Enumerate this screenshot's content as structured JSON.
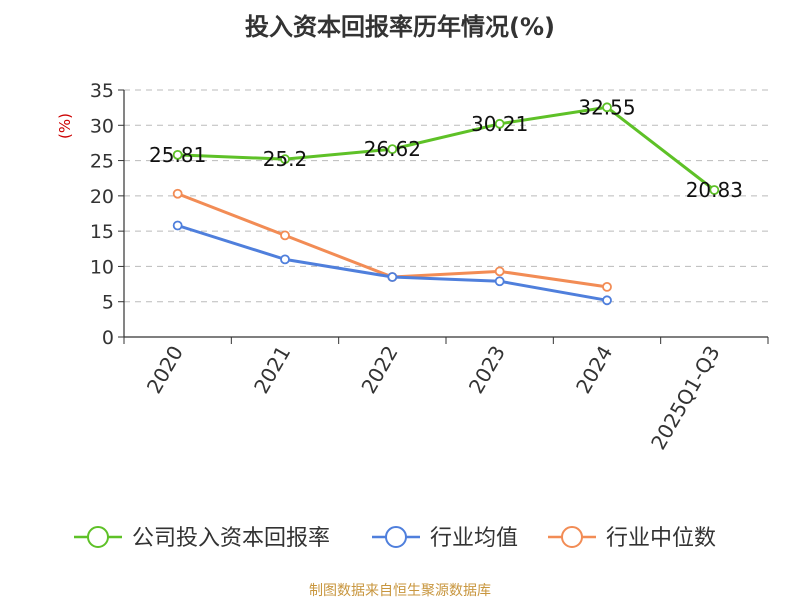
{
  "chart_data": {
    "type": "line",
    "title": "投入资本回报率历年情况(%)",
    "ylabel": "(%)",
    "categories": [
      "2020",
      "2021",
      "2022",
      "2023",
      "2024",
      "2025Q1-Q3"
    ],
    "ylim": [
      0,
      35
    ],
    "yticks": [
      0,
      5,
      10,
      15,
      20,
      25,
      30,
      35
    ],
    "grid": true,
    "legend_position": "bottom",
    "series": [
      {
        "name": "公司投入资本回报率",
        "color": "#5ec127",
        "values": [
          25.81,
          25.2,
          26.62,
          30.21,
          32.55,
          20.83
        ],
        "labels": [
          "25.81",
          "25.2",
          "26.62",
          "30.21",
          "32.55",
          "20.83"
        ]
      },
      {
        "name": "行业均值",
        "color": "#4f7fdc",
        "values": [
          15.8,
          11.0,
          8.5,
          7.9,
          5.2,
          null
        ]
      },
      {
        "name": "行业中位数",
        "color": "#f28c55",
        "values": [
          20.3,
          14.4,
          8.5,
          9.3,
          7.1,
          null
        ]
      }
    ]
  },
  "footer": {
    "source": "制图数据来自恒生聚源数据库"
  }
}
